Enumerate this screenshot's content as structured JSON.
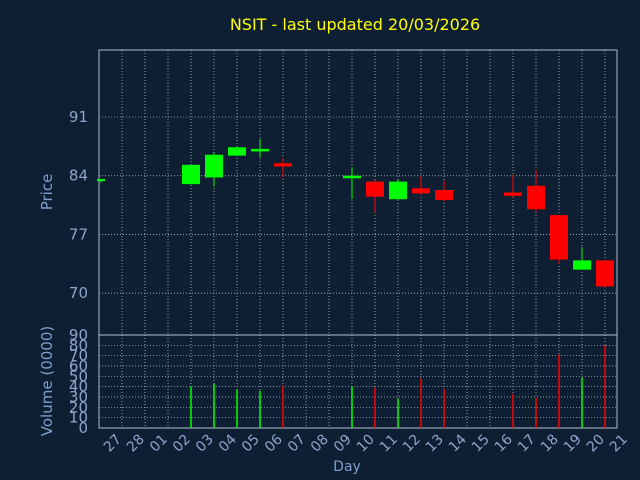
{
  "theme": {
    "background": "#0f1f33",
    "title_color": "#ffff00",
    "axis_color": "#8ea4c8",
    "label_color": "#7f9fca",
    "grid_color": "#c8d0dc",
    "frame_color": "#b0b8c8",
    "up_color": "#00ff00",
    "down_color": "#ff0000"
  },
  "title": "NSIT - last updated 20/03/2026",
  "chart_data": [
    {
      "type": "candlestick",
      "ylabel": "Price",
      "ylim": [
        65,
        99
      ],
      "yticks": [
        70,
        77,
        84,
        91
      ],
      "grid": true,
      "x": [
        "27",
        "28",
        "01",
        "02",
        "03",
        "04",
        "05",
        "06",
        "07",
        "08",
        "09",
        "10",
        "11",
        "12",
        "13",
        "14",
        "15",
        "16",
        "17",
        "18",
        "19",
        "20",
        "21"
      ],
      "candles": [
        {
          "day": "27",
          "open": 83.4,
          "high": 83.6,
          "low": 83.2,
          "close": 83.6
        },
        {
          "day": "02",
          "open": 83.0,
          "high": 85.3,
          "low": 83.0,
          "close": 85.3
        },
        {
          "day": "03",
          "open": 83.8,
          "high": 86.8,
          "low": 82.7,
          "close": 86.5
        },
        {
          "day": "04",
          "open": 86.4,
          "high": 87.4,
          "low": 86.4,
          "close": 87.4
        },
        {
          "day": "05",
          "open": 86.9,
          "high": 88.4,
          "low": 86.2,
          "close": 87.2
        },
        {
          "day": "06",
          "open": 85.5,
          "high": 86.1,
          "low": 83.8,
          "close": 85.1
        },
        {
          "day": "09",
          "open": 83.7,
          "high": 85.0,
          "low": 81.2,
          "close": 84.0
        },
        {
          "day": "10",
          "open": 83.3,
          "high": 83.5,
          "low": 79.6,
          "close": 81.5
        },
        {
          "day": "11",
          "open": 81.2,
          "high": 83.5,
          "low": 81.1,
          "close": 83.3
        },
        {
          "day": "12",
          "open": 82.5,
          "high": 84.0,
          "low": 81.7,
          "close": 81.9
        },
        {
          "day": "13",
          "open": 82.3,
          "high": 83.4,
          "low": 80.9,
          "close": 81.1
        },
        {
          "day": "16",
          "open": 82.0,
          "high": 84.1,
          "low": 81.4,
          "close": 81.6
        },
        {
          "day": "17",
          "open": 82.8,
          "high": 84.7,
          "low": 79.7,
          "close": 80.0
        },
        {
          "day": "18",
          "open": 79.3,
          "high": 79.3,
          "low": 73.5,
          "close": 74.0
        },
        {
          "day": "19",
          "open": 72.8,
          "high": 75.5,
          "low": 72.8,
          "close": 73.9
        },
        {
          "day": "20",
          "open": 73.9,
          "high": 73.9,
          "low": 70.6,
          "close": 70.8
        }
      ]
    },
    {
      "type": "bar",
      "ylabel": "Volume (0000)",
      "xlabel": "Day",
      "ylim": [
        0,
        90
      ],
      "yticks": [
        0,
        10,
        20,
        30,
        40,
        50,
        60,
        70,
        80,
        90
      ],
      "grid": true,
      "x": [
        "27",
        "28",
        "01",
        "02",
        "03",
        "04",
        "05",
        "06",
        "07",
        "08",
        "09",
        "10",
        "11",
        "12",
        "13",
        "14",
        "15",
        "16",
        "17",
        "18",
        "19",
        "20",
        "21"
      ],
      "bars": [
        {
          "day": "02",
          "value": 40,
          "direction": "up"
        },
        {
          "day": "03",
          "value": 43,
          "direction": "up"
        },
        {
          "day": "04",
          "value": 37,
          "direction": "up"
        },
        {
          "day": "05",
          "value": 36,
          "direction": "up"
        },
        {
          "day": "06",
          "value": 41,
          "direction": "down"
        },
        {
          "day": "09",
          "value": 40,
          "direction": "up"
        },
        {
          "day": "10",
          "value": 39,
          "direction": "down"
        },
        {
          "day": "11",
          "value": 28,
          "direction": "up"
        },
        {
          "day": "12",
          "value": 48,
          "direction": "down"
        },
        {
          "day": "13",
          "value": 38,
          "direction": "down"
        },
        {
          "day": "16",
          "value": 33,
          "direction": "down"
        },
        {
          "day": "17",
          "value": 29,
          "direction": "down"
        },
        {
          "day": "18",
          "value": 71,
          "direction": "down"
        },
        {
          "day": "19",
          "value": 49,
          "direction": "up"
        },
        {
          "day": "20",
          "value": 80,
          "direction": "down"
        }
      ]
    }
  ]
}
